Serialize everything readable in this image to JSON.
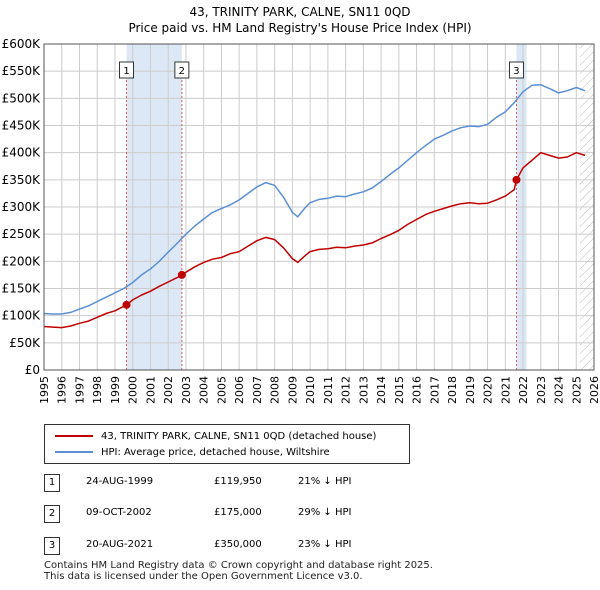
{
  "title_line1": "43, TRINITY PARK, CALNE, SN11 0QD",
  "title_line2": "Price paid vs. HM Land Registry's House Price Index (HPI)",
  "colors": {
    "property": "#c00000",
    "hpi": "#5b8fd4",
    "shade": "#dde8f7",
    "marker_line": "#d06060",
    "grid": "#cccccc"
  },
  "chart_data": {
    "type": "line",
    "ylim": [
      0,
      600000
    ],
    "xlim": [
      1995,
      2026
    ],
    "y_ticks": [
      0,
      50000,
      100000,
      150000,
      200000,
      250000,
      300000,
      350000,
      400000,
      450000,
      500000,
      550000,
      600000
    ],
    "y_tick_labels": [
      "£0",
      "£50K",
      "£100K",
      "£150K",
      "£200K",
      "£250K",
      "£300K",
      "£350K",
      "£400K",
      "£450K",
      "£500K",
      "£550K",
      "£600K"
    ],
    "x_ticks": [
      1995,
      1996,
      1997,
      1998,
      1999,
      2000,
      2001,
      2002,
      2003,
      2004,
      2005,
      2006,
      2007,
      2008,
      2009,
      2010,
      2011,
      2012,
      2013,
      2014,
      2015,
      2016,
      2017,
      2018,
      2019,
      2020,
      2021,
      2022,
      2023,
      2024,
      2025,
      2026
    ],
    "x_tick_labels": [
      "1995",
      "1996",
      "1997",
      "1998",
      "1999",
      "2000",
      "2001",
      "2002",
      "2003",
      "2004",
      "2005",
      "2006",
      "2007",
      "2008",
      "2009",
      "2010",
      "2011",
      "2012",
      "2013",
      "2014",
      "2015",
      "2016",
      "2017",
      "2018",
      "2019",
      "2020",
      "2021",
      "2022",
      "2023",
      "2024",
      "2025",
      "2026"
    ],
    "grid": true,
    "hatch_start": 2025.2,
    "shaded_spans": [
      [
        1999.65,
        2002.77
      ],
      [
        2021.63,
        2022.2
      ]
    ],
    "series": [
      {
        "name": "43, TRINITY PARK, CALNE, SN11 0QD (detached house)",
        "x": [
          1995.0,
          1995.5,
          1996.0,
          1996.5,
          1997.0,
          1997.5,
          1998.0,
          1998.5,
          1999.0,
          1999.65,
          2000.0,
          2000.5,
          2001.0,
          2001.5,
          2002.0,
          2002.5,
          2002.77,
          2003.0,
          2003.5,
          2004.0,
          2004.5,
          2005.0,
          2005.5,
          2006.0,
          2006.5,
          2007.0,
          2007.5,
          2008.0,
          2008.5,
          2009.0,
          2009.3,
          2009.7,
          2010.0,
          2010.5,
          2011.0,
          2011.5,
          2012.0,
          2012.5,
          2013.0,
          2013.5,
          2014.0,
          2014.5,
          2015.0,
          2015.5,
          2016.0,
          2016.5,
          2017.0,
          2017.5,
          2018.0,
          2018.5,
          2019.0,
          2019.5,
          2020.0,
          2020.5,
          2021.0,
          2021.5,
          2021.63,
          2022.0,
          2022.5,
          2023.0,
          2023.5,
          2024.0,
          2024.5,
          2025.0,
          2025.5
        ],
        "y": [
          80000,
          79000,
          78000,
          81000,
          86000,
          90000,
          97000,
          104000,
          109000,
          119950,
          129000,
          138000,
          145000,
          154000,
          162000,
          170000,
          175000,
          180000,
          190000,
          198000,
          204000,
          207000,
          214000,
          218000,
          228000,
          238000,
          244000,
          240000,
          225000,
          205000,
          198000,
          210000,
          218000,
          222000,
          223000,
          226000,
          225000,
          228000,
          230000,
          234000,
          242000,
          249000,
          257000,
          268000,
          277000,
          286000,
          292000,
          297000,
          302000,
          306000,
          308000,
          306000,
          307000,
          313000,
          320000,
          332000,
          350000,
          372000,
          386000,
          400000,
          395000,
          390000,
          392000,
          400000,
          395000
        ]
      },
      {
        "name": "HPI: Average price, detached house, Wiltshire",
        "x": [
          1995.0,
          1995.5,
          1996.0,
          1996.5,
          1997.0,
          1997.5,
          1998.0,
          1998.5,
          1999.0,
          1999.5,
          2000.0,
          2000.5,
          2001.0,
          2001.5,
          2002.0,
          2002.5,
          2003.0,
          2003.5,
          2004.0,
          2004.5,
          2005.0,
          2005.5,
          2006.0,
          2006.5,
          2007.0,
          2007.5,
          2008.0,
          2008.5,
          2009.0,
          2009.3,
          2009.7,
          2010.0,
          2010.5,
          2011.0,
          2011.5,
          2012.0,
          2012.5,
          2013.0,
          2013.5,
          2014.0,
          2014.5,
          2015.0,
          2015.5,
          2016.0,
          2016.5,
          2017.0,
          2017.5,
          2018.0,
          2018.5,
          2019.0,
          2019.5,
          2020.0,
          2020.5,
          2021.0,
          2021.5,
          2022.0,
          2022.5,
          2023.0,
          2023.5,
          2024.0,
          2024.5,
          2025.0,
          2025.5
        ],
        "y": [
          104000,
          103000,
          103000,
          106000,
          112000,
          118000,
          126000,
          134000,
          142000,
          150000,
          161000,
          175000,
          186000,
          200000,
          217000,
          233000,
          250000,
          265000,
          278000,
          290000,
          297000,
          304000,
          313000,
          325000,
          337000,
          345000,
          340000,
          318000,
          290000,
          282000,
          298000,
          308000,
          314000,
          316000,
          320000,
          319000,
          324000,
          328000,
          335000,
          347000,
          360000,
          372000,
          386000,
          400000,
          413000,
          425000,
          432000,
          440000,
          446000,
          449000,
          448000,
          452000,
          465000,
          475000,
          492000,
          512000,
          524000,
          525000,
          518000,
          510000,
          514000,
          520000,
          514000
        ]
      }
    ],
    "sales": [
      {
        "label": "1",
        "x": 1999.65,
        "y": 119950
      },
      {
        "label": "2",
        "x": 2002.77,
        "y": 175000
      },
      {
        "label": "3",
        "x": 2021.63,
        "y": 350000
      }
    ]
  },
  "legend": {
    "property_label": "43, TRINITY PARK, CALNE, SN11 0QD (detached house)",
    "hpi_label": "HPI: Average price, detached house, Wiltshire"
  },
  "sales_table": [
    {
      "num": "1",
      "date": "24-AUG-1999",
      "price": "£119,950",
      "hpi": "21% ↓ HPI"
    },
    {
      "num": "2",
      "date": "09-OCT-2002",
      "price": "£175,000",
      "hpi": "29% ↓ HPI"
    },
    {
      "num": "3",
      "date": "20-AUG-2021",
      "price": "£350,000",
      "hpi": "23% ↓ HPI"
    }
  ],
  "footer_line1": "Contains HM Land Registry data © Crown copyright and database right 2025.",
  "footer_line2": "This data is licensed under the Open Government Licence v3.0."
}
